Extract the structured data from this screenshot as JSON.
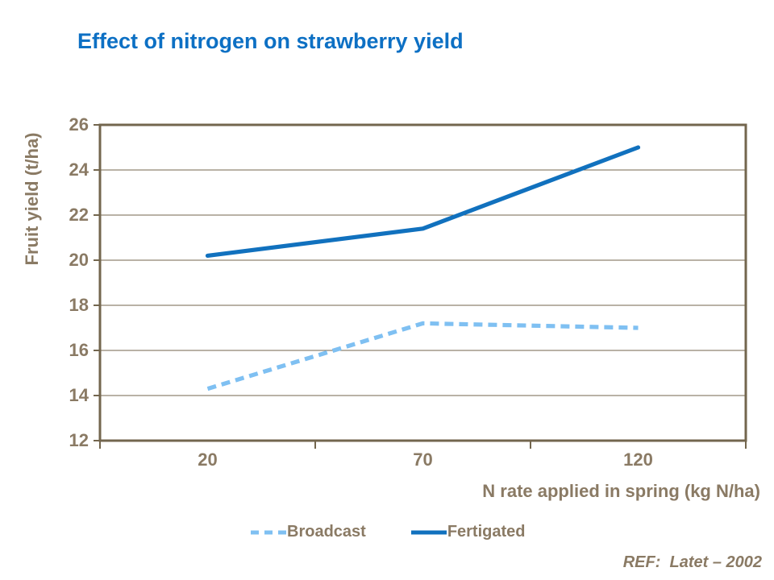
{
  "title": {
    "text": "Effect of nitrogen on strawberry yield"
  },
  "colors": {
    "title_blue": "#0D70C4",
    "axis_text": "#8A7A64",
    "grid": "#73664E",
    "background": "#FFFFFF"
  },
  "ref_note": "REF:  Latet – 2002",
  "chart_data": {
    "type": "line",
    "title": "Effect of nitrogen on strawberry yield",
    "categories": [
      "20",
      "70",
      "120"
    ],
    "series": [
      {
        "name": "Broadcast",
        "values": [
          14.3,
          17.2,
          17.0
        ],
        "color": "#7FC0F2",
        "style": "dashed"
      },
      {
        "name": "Fertigated",
        "values": [
          20.2,
          21.4,
          25.0
        ],
        "color": "#1171BE",
        "style": "solid"
      }
    ],
    "xlabel": "N rate applied in spring (kg N/ha)",
    "ylabel": "Fruit yield (t/ha)",
    "ylim": [
      12,
      26
    ],
    "yticks": [
      12,
      14,
      16,
      18,
      20,
      22,
      24,
      26
    ],
    "grid": true,
    "grid_lines": "horizontal",
    "legend_position": "bottom"
  }
}
